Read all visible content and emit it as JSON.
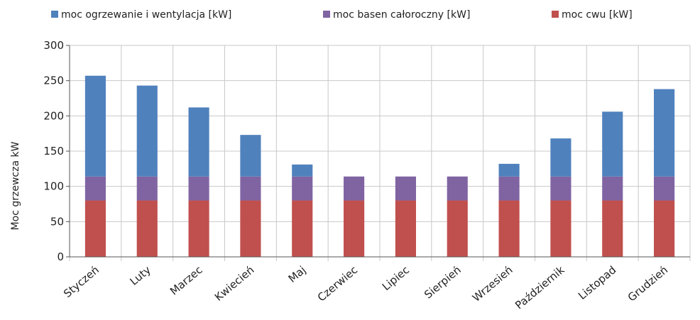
{
  "chart_data": {
    "type": "bar",
    "stacked": true,
    "categories": [
      "Styczeń",
      "Luty",
      "Marzec",
      "Kwiecień",
      "Maj",
      "Czerwiec",
      "Lipiec",
      "Sierpień",
      "Wrzesień",
      "Październik",
      "Listopad",
      "Grudzień"
    ],
    "series": [
      {
        "name": "moc cwu [kW]",
        "color": "#c0504d",
        "values": [
          80,
          80,
          80,
          80,
          80,
          80,
          80,
          80,
          80,
          80,
          80,
          80
        ]
      },
      {
        "name": "moc basen całoroczny [kW]",
        "color": "#8064a2",
        "values": [
          34,
          34,
          34,
          34,
          34,
          34,
          34,
          34,
          34,
          34,
          34,
          34
        ]
      },
      {
        "name": "moc ogrzewanie i wentylacja  [kW]",
        "color": "#4f81bd",
        "values": [
          143,
          129,
          98,
          59,
          17,
          0,
          0,
          0,
          18,
          54,
          92,
          124
        ]
      }
    ],
    "legend_order": [
      2,
      1,
      0
    ],
    "legend_position": "top",
    "ylabel": "Moc grzewcza  kW",
    "xlabel": "",
    "ylim": [
      0,
      300
    ],
    "yticks": [
      0,
      50,
      100,
      150,
      200,
      250,
      300
    ],
    "grid": true
  }
}
